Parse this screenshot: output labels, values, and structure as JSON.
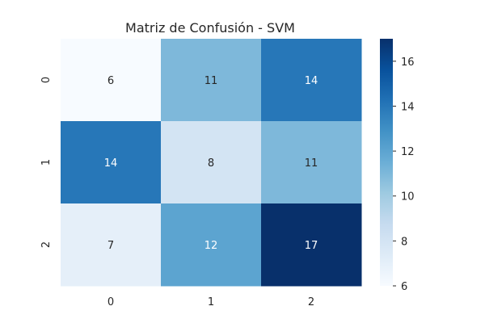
{
  "chart_data": {
    "type": "heatmap",
    "title": "Matriz de Confusión - SVM",
    "xlabel": "",
    "ylabel": "",
    "x_categories": [
      "0",
      "1",
      "2"
    ],
    "y_categories": [
      "0",
      "1",
      "2"
    ],
    "values": [
      [
        6,
        11,
        14
      ],
      [
        14,
        8,
        11
      ],
      [
        7,
        12,
        17
      ]
    ],
    "colormap": "Blues",
    "colorbar": {
      "min": 6,
      "max": 17,
      "ticks": [
        6,
        8,
        10,
        12,
        14,
        16
      ]
    },
    "grid": false
  }
}
